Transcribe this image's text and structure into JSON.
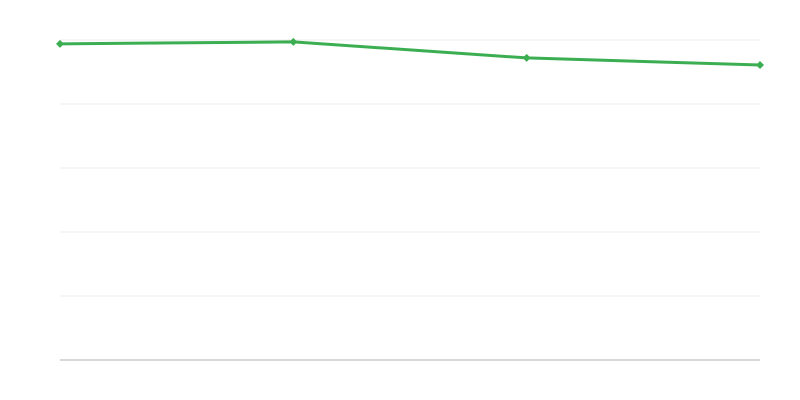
{
  "chart_data": {
    "type": "line",
    "categories": [
      null,
      null,
      null,
      null
    ],
    "values": [
      4.94,
      4.97,
      4.72,
      4.61
    ],
    "color": "#3cae52",
    "ylim": [
      0,
      5
    ],
    "yticks": [
      0,
      1,
      2,
      3,
      4,
      5
    ],
    "grid": true
  }
}
